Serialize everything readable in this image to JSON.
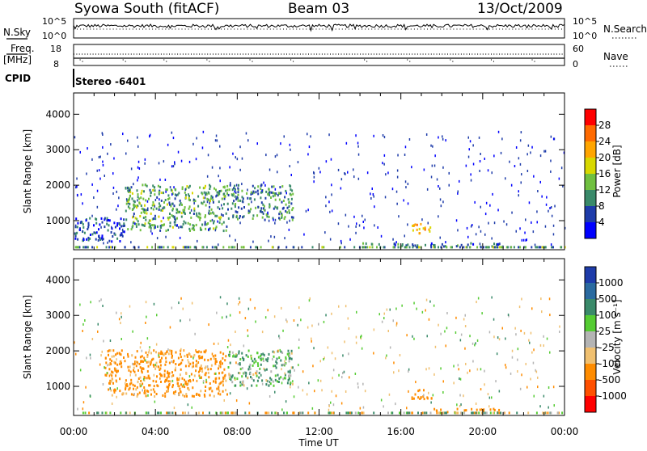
{
  "header": {
    "station": "Syowa South (fitACF)",
    "beam": "Beam 03",
    "date": "13/Oct/2009"
  },
  "top_panels": {
    "nsky_label": "N.Sky",
    "nsky_ticks": [
      "10^5",
      "10^0"
    ],
    "nsearch_label": "N.Search",
    "nsearch_ticks": [
      "10^5",
      "10^0"
    ],
    "freq_label_1": "Freq.",
    "freq_label_2": "[MHz]",
    "freq_ticks": [
      "18",
      "8"
    ],
    "nave_label": "Nave",
    "nave_ticks": [
      "60",
      "0"
    ],
    "cpid_label": "CPID",
    "cpid_value": "Stereo  -6401"
  },
  "chart_data": [
    {
      "type": "heatmap",
      "name": "power",
      "ylabel": "Slant Range [km]",
      "y_ticks": [
        "1000",
        "2000",
        "3000",
        "4000"
      ],
      "ylim": [
        180,
        4600
      ],
      "colorbar_label": "Power [dB]",
      "colorbar_ticks": [
        "28",
        "24",
        "20",
        "16",
        "12",
        "8",
        "4"
      ],
      "colorbar_colors": [
        "#ff0000",
        "#ff6a00",
        "#ffa500",
        "#d8d800",
        "#70c040",
        "#3a8a6a",
        "#1e3caa",
        "#0000ff"
      ],
      "echo_regions": [
        {
          "t_start": 0.0,
          "t_end": 2.5,
          "r_start": 400,
          "r_end": 1100,
          "power_db": 6
        },
        {
          "t_start": 2.5,
          "t_end": 7.5,
          "r_start": 700,
          "r_end": 2000,
          "power_db": 12
        },
        {
          "t_start": 7.5,
          "t_end": 10.7,
          "r_start": 1000,
          "r_end": 2000,
          "power_db": 10
        },
        {
          "t_start": 16.5,
          "t_end": 17.5,
          "r_start": 600,
          "r_end": 900,
          "power_db": 20
        },
        {
          "t_start": 14.0,
          "t_end": 21.0,
          "r_start": 250,
          "r_end": 350,
          "power_db": 8
        }
      ]
    },
    {
      "type": "heatmap",
      "name": "velocity",
      "ylabel": "Slant Range [km]",
      "y_ticks": [
        "1000",
        "2000",
        "3000",
        "4000"
      ],
      "ylim": [
        180,
        4600
      ],
      "colorbar_label": "Velocity [m s⁻¹]",
      "colorbar_ticks": [
        "1000",
        "500",
        "100",
        "25",
        "-25",
        "-100",
        "-500",
        "-1000"
      ],
      "colorbar_colors": [
        "#1e3caa",
        "#2a6aa0",
        "#3a8a6a",
        "#55cc33",
        "#b4b4b4",
        "#f0c070",
        "#ff8c00",
        "#ff5000",
        "#ff0000"
      ],
      "echo_regions": [
        {
          "t_start": 1.5,
          "t_end": 7.5,
          "r_start": 700,
          "r_end": 2000,
          "velocity": -200
        },
        {
          "t_start": 7.5,
          "t_end": 10.7,
          "r_start": 1000,
          "r_end": 2000,
          "velocity": 100
        },
        {
          "t_start": 16.5,
          "t_end": 17.5,
          "r_start": 600,
          "r_end": 900,
          "velocity": -300
        },
        {
          "t_start": 17.5,
          "t_end": 21.0,
          "r_start": 250,
          "r_end": 350,
          "velocity": -300
        }
      ]
    }
  ],
  "time_axis": {
    "label": "Time UT",
    "ticks": [
      "00:00",
      "04:00",
      "08:00",
      "12:00",
      "16:00",
      "20:00",
      "00:00"
    ]
  }
}
